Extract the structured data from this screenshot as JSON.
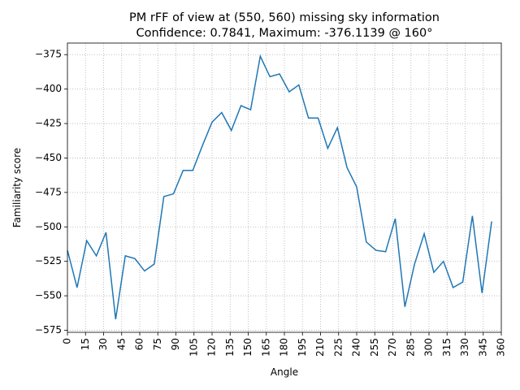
{
  "chart_data": {
    "type": "line",
    "title": "PM rFF of view at (550, 560) missing sky information",
    "subtitle": "Confidence: 0.7841, Maximum: -376.1139 @ 160°",
    "x_label": "Angle",
    "y_label": "Familiarity score",
    "x": [
      0,
      8,
      16,
      24,
      32,
      40,
      48,
      56,
      64,
      72,
      80,
      88,
      96,
      104,
      112,
      120,
      128,
      136,
      144,
      152,
      160,
      168,
      176,
      184,
      192,
      200,
      208,
      216,
      224,
      232,
      240,
      248,
      256,
      264,
      272,
      280,
      288,
      296,
      304,
      312,
      320,
      328,
      336,
      344,
      352
    ],
    "series": [
      {
        "name": "Familiarity score",
        "color": "#1f77b4",
        "values": [
          -517,
          -544,
          -510,
          -521,
          -504,
          -567,
          -521,
          -523,
          -532,
          -527,
          -478,
          -476,
          -459,
          -459,
          -441,
          -424,
          -417,
          -430,
          -412,
          -415,
          -376.1139,
          -391,
          -389,
          -402,
          -397,
          -421,
          -421,
          -443,
          -428,
          -457,
          -471,
          -511,
          -517,
          -518,
          -494,
          -558,
          -527,
          -505,
          -533,
          -525,
          -544,
          -540,
          -492,
          -548,
          -496
        ]
      }
    ],
    "xlim": [
      0,
      360
    ],
    "xticks": [
      0,
      15,
      30,
      45,
      60,
      75,
      90,
      105,
      120,
      135,
      150,
      165,
      180,
      195,
      210,
      225,
      240,
      255,
      270,
      285,
      300,
      315,
      330,
      345,
      360
    ],
    "ylim": [
      -576.5,
      -366.6
    ],
    "yticks": [
      {
        "value": -375,
        "label": "−375"
      },
      {
        "value": -400,
        "label": "−400"
      },
      {
        "value": -425,
        "label": "−425"
      },
      {
        "value": -450,
        "label": "−450"
      },
      {
        "value": -475,
        "label": "−475"
      },
      {
        "value": -500,
        "label": "−500"
      },
      {
        "value": -525,
        "label": "−525"
      },
      {
        "value": -550,
        "label": "−550"
      },
      {
        "value": -575,
        "label": "−575"
      }
    ],
    "grid": true
  }
}
